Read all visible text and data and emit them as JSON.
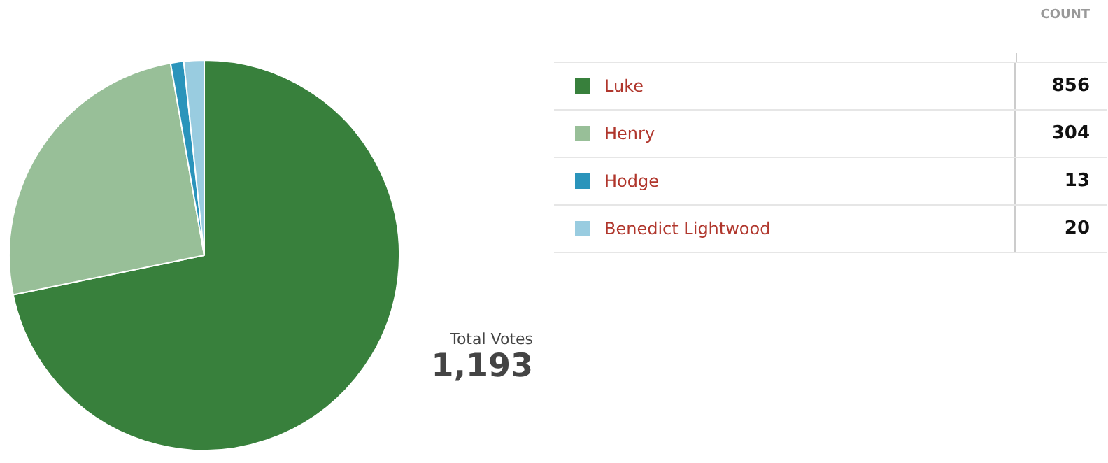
{
  "chart_data": {
    "type": "pie",
    "categories": [
      "Luke",
      "Henry",
      "Hodge",
      "Benedict Lightwood"
    ],
    "values": [
      856,
      304,
      13,
      20
    ],
    "colors": [
      "#38803c",
      "#98bf98",
      "#2a94bb",
      "#99cce0"
    ],
    "legend": "right",
    "data_labels": true,
    "annotations": [
      "COUNT",
      "Total Votes",
      "1,193"
    ]
  }
}
